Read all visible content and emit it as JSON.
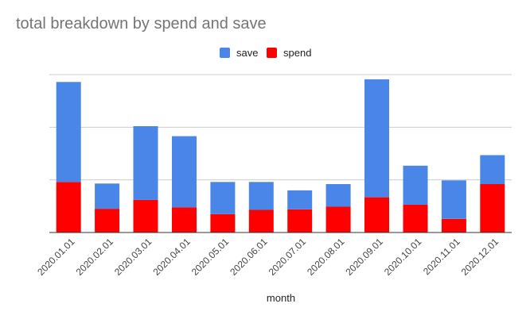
{
  "chart_data": {
    "type": "bar",
    "stacked": true,
    "title": "total breakdown by spend and save",
    "xlabel": "month",
    "ylabel": "",
    "ylim": [
      0,
      3
    ],
    "grid": true,
    "legend_position": "top",
    "categories": [
      "2020.01.01",
      "2020.02.01",
      "2020.03.01",
      "2020.04.01",
      "2020.05.01",
      "2020.06.01",
      "2020.07.01",
      "2020.08.01",
      "2020.09.01",
      "2020.10.01",
      "2020.11.01",
      "2020.12.01"
    ],
    "series": [
      {
        "name": "spend",
        "color": "#ff0000",
        "values": [
          0.96,
          0.45,
          0.62,
          0.48,
          0.35,
          0.43,
          0.44,
          0.49,
          0.67,
          0.53,
          0.26,
          0.92
        ]
      },
      {
        "name": "save",
        "color": "#4a86e8",
        "values": [
          1.9,
          0.48,
          1.4,
          1.35,
          0.61,
          0.53,
          0.36,
          0.43,
          2.24,
          0.74,
          0.73,
          0.55
        ]
      }
    ]
  }
}
